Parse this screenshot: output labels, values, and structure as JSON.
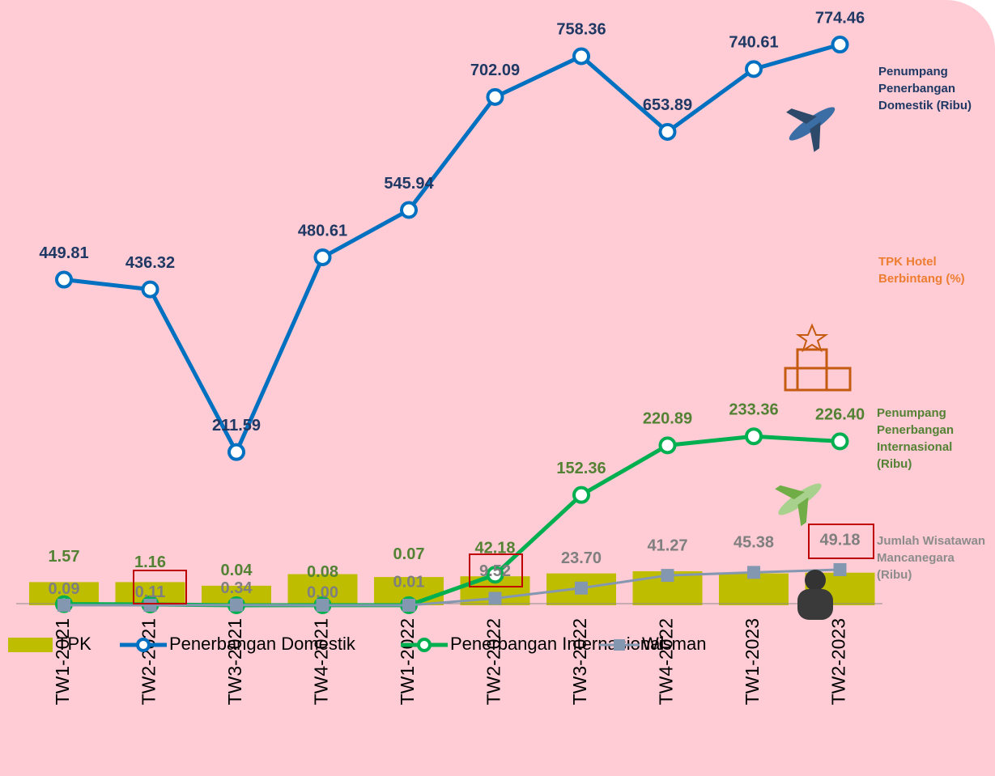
{
  "chart_data": {
    "type": "line",
    "categories": [
      "TW1-2021",
      "TW2-2021",
      "TW3-2021",
      "TW4-2021",
      "TW1-2022",
      "TW2-2022",
      "TW3-2022",
      "TW4-2022",
      "TW1-2023",
      "TW2-2023"
    ],
    "ylim": [
      0,
      836
    ],
    "series": [
      {
        "name": "TPK",
        "type": "bar",
        "color": "#bfbd00",
        "values": [
          32,
          32,
          27,
          43,
          39,
          40,
          44,
          47,
          44,
          45
        ]
      },
      {
        "name": "Penerbangan Domestik",
        "type": "line",
        "color": "#0070c0",
        "label_color": "#1f3864",
        "values": [
          449.81,
          436.32,
          211.59,
          480.61,
          545.94,
          702.09,
          758.36,
          653.89,
          740.61,
          774.46
        ],
        "value_labels": [
          "449.81",
          "436.32",
          "211.59",
          "480.61",
          "545.94",
          "702.09",
          "758.36",
          "653.89",
          "740.61",
          "774.46"
        ]
      },
      {
        "name": "Penerbangan Internasional",
        "type": "line",
        "color": "#00b050",
        "label_color": "#548235",
        "values": [
          1.57,
          1.16,
          0.04,
          0.08,
          0.07,
          42.18,
          152.36,
          220.89,
          233.36,
          226.4
        ],
        "value_labels": [
          "1.57",
          "1.16",
          "0.04",
          "0.08",
          "0.07",
          "42.18",
          "152.36",
          "220.89",
          "233.36",
          "226.40"
        ]
      },
      {
        "name": "Wisman",
        "type": "line",
        "marker": "square",
        "color": "#8497b0",
        "label_color": "#7f7f7f",
        "values": [
          0.09,
          0.11,
          0.34,
          0.0,
          0.01,
          9.52,
          23.7,
          41.27,
          45.38,
          49.18
        ],
        "value_labels": [
          "0.09",
          "0.11",
          "0.34",
          "0.00",
          "0.01",
          "9.52",
          "23.70",
          "41.27",
          "45.38",
          "49.18"
        ]
      }
    ],
    "annotations": [
      {
        "text": "Penumpang Penerbangan Domestik (Ribu)",
        "color": "#1f3864"
      },
      {
        "text": "TPK Hotel Berbintang (%)",
        "color": "#ed7d31"
      },
      {
        "text": "Penumpang Penerbangan Internasional (Ribu)",
        "color": "#548235"
      },
      {
        "text": "Jumlah Wisatawan Mancanegara (Ribu)",
        "color": "#8c8c8c"
      }
    ]
  }
}
